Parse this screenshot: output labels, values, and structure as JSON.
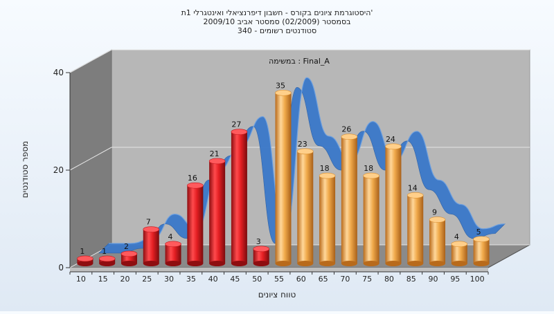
{
  "chart_data": {
    "type": "bar",
    "title_lines": [
      "היסטוגרמת ציונים בקורס - חשבון דיפרנציאלי ואינטגרלי 1ת'",
      "בסמסטר  (02/2009)  סמסטר אביב 2009/10",
      "סטודנטים רשומים - 340"
    ],
    "annotation": "במשימה : Final_A",
    "xlabel": "טווח ציונים",
    "ylabel": "מספר סטודנטים",
    "categories": [
      "10",
      "15",
      "20",
      "25",
      "30",
      "35",
      "40",
      "45",
      "50",
      "55",
      "60",
      "65",
      "70",
      "75",
      "80",
      "85",
      "90",
      "95",
      "100"
    ],
    "values": [
      1,
      1,
      2,
      7,
      4,
      16,
      21,
      27,
      3,
      35,
      23,
      18,
      26,
      18,
      24,
      14,
      9,
      4,
      5
    ],
    "bar_colors": [
      "red",
      "red",
      "red",
      "red",
      "red",
      "red",
      "red",
      "red",
      "red",
      "orange",
      "orange",
      "orange",
      "orange",
      "orange",
      "orange",
      "orange",
      "orange",
      "orange",
      "orange"
    ],
    "colors": {
      "red": "#e41f23",
      "orange": "#f0a94a",
      "ribbon": "#3a78c9",
      "back_wall": "#b7b7b7",
      "side_wall": "#7d7d7d",
      "floor": "#8a8a8a"
    },
    "ylim": [
      0,
      40
    ],
    "yticks": [
      0,
      20,
      40
    ],
    "grid": true,
    "trend_series": [
      1,
      1,
      2,
      7,
      4,
      16,
      21,
      27,
      3,
      35,
      23,
      18,
      26,
      18,
      24,
      14,
      9,
      4,
      5
    ]
  }
}
